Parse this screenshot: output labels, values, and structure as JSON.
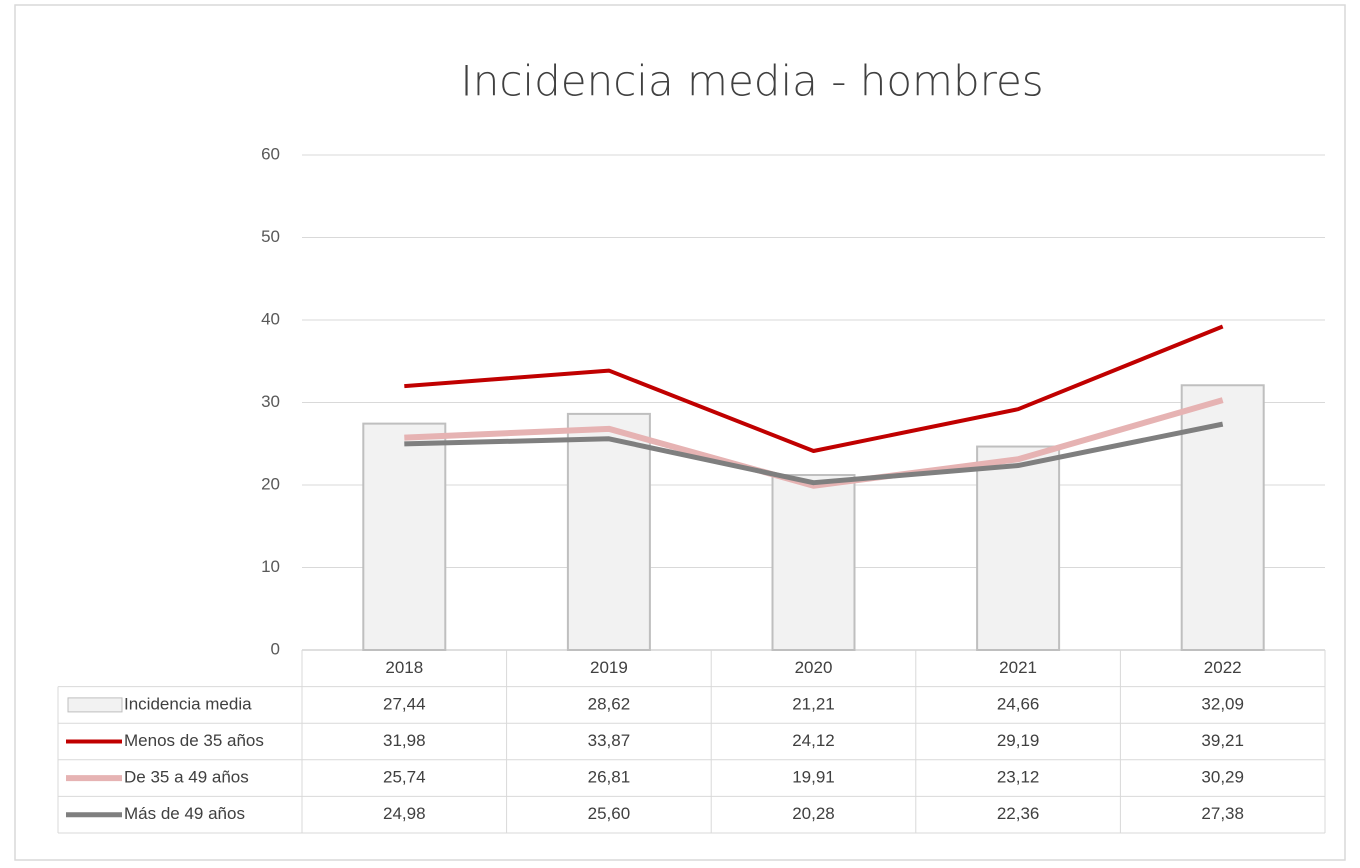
{
  "chart_data": {
    "type": "bar",
    "title": "Incidencia media - hombres",
    "categories": [
      "2018",
      "2019",
      "2020",
      "2021",
      "2022"
    ],
    "series": [
      {
        "name": "Incidencia media",
        "type": "bar",
        "color": "#f2f2f2",
        "values": [
          27.44,
          28.62,
          21.21,
          24.66,
          32.09
        ],
        "value_labels": [
          "27,44",
          "28,62",
          "21,21",
          "24,66",
          "32,09"
        ]
      },
      {
        "name": "Menos de 35 años",
        "type": "line",
        "color": "#c00000",
        "values": [
          31.98,
          33.87,
          24.12,
          29.19,
          39.21
        ],
        "value_labels": [
          "31,98",
          "33,87",
          "24,12",
          "29,19",
          "39,21"
        ]
      },
      {
        "name": "De 35 a 49 años",
        "type": "line",
        "color": "#e6b3b3",
        "values": [
          25.74,
          26.81,
          19.91,
          23.12,
          30.29
        ],
        "value_labels": [
          "25,74",
          "26,81",
          "19,91",
          "23,12",
          "30,29"
        ]
      },
      {
        "name": "Más de 49 años",
        "type": "line",
        "color": "#7f7f7f",
        "values": [
          24.98,
          25.6,
          20.28,
          22.36,
          27.38
        ],
        "value_labels": [
          "24,98",
          "25,60",
          "20,28",
          "22,36",
          "27,38"
        ]
      }
    ],
    "ylim": [
      0,
      60
    ],
    "yticks": [
      0,
      10,
      20,
      30,
      40,
      50,
      60
    ],
    "grid": true
  }
}
